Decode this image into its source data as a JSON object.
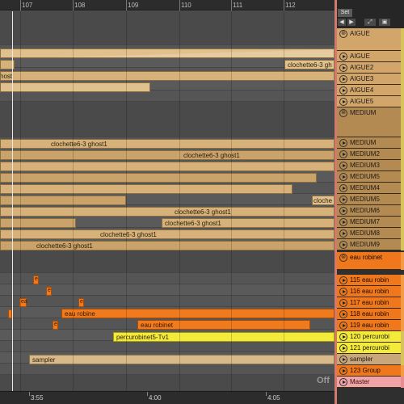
{
  "ruler": {
    "bars": [
      "107",
      "108",
      "109",
      "110",
      "111",
      "112"
    ]
  },
  "header": {
    "set_label": "Set",
    "back_icon": "arrow-left-icon",
    "forward_icon": "arrow-right-icon",
    "expand_icon": "expand-icon",
    "lock_icon": "lock-icon"
  },
  "tracks": [
    {
      "name": "AIGUE",
      "kind": "group"
    },
    {
      "name": "AIGUE",
      "kind": "aigue"
    },
    {
      "name": "AIGUE2",
      "kind": "aigue"
    },
    {
      "name": "AIGUE3",
      "kind": "aigue"
    },
    {
      "name": "AIGUE4",
      "kind": "aigue"
    },
    {
      "name": "AIGUE5",
      "kind": "aigue"
    },
    {
      "name": "MEDIUM",
      "kind": "group"
    },
    {
      "name": "MEDIUM",
      "kind": "medium"
    },
    {
      "name": "MEDIUM2",
      "kind": "medium"
    },
    {
      "name": "MEDIUM3",
      "kind": "medium"
    },
    {
      "name": "MEDIUM5",
      "kind": "medium"
    },
    {
      "name": "MEDIUM4",
      "kind": "medium"
    },
    {
      "name": "MEDIUM5",
      "kind": "medium"
    },
    {
      "name": "MEDIUM6",
      "kind": "medium"
    },
    {
      "name": "MEDIUM7",
      "kind": "medium"
    },
    {
      "name": "MEDIUM8",
      "kind": "medium"
    },
    {
      "name": "MEDIUM9",
      "kind": "medium"
    },
    {
      "name": "eau robinet",
      "kind": "orange-group"
    },
    {
      "name": "115 eau robin",
      "kind": "orange"
    },
    {
      "name": "116 eau robin",
      "kind": "orange"
    },
    {
      "name": "117 eau robin",
      "kind": "orange"
    },
    {
      "name": "118 eau robin",
      "kind": "orange"
    },
    {
      "name": "119 eau robin",
      "kind": "orange"
    },
    {
      "name": "120 percurobi",
      "kind": "yellow"
    },
    {
      "name": "121 percurobi",
      "kind": "yellow"
    },
    {
      "name": "sampler",
      "kind": "beige"
    },
    {
      "name": "123 Group",
      "kind": "group-orange"
    },
    {
      "name": "Master",
      "kind": "master"
    }
  ],
  "clips": {
    "clochette": "clochette6-3 gh",
    "ghost_short": "host",
    "ghost1": "clochette6-3 ghost1",
    "cloche_cut": "cloche",
    "eau_robinet": "eau robinet",
    "eau_robine": "eau robine",
    "percurobinet": "percurobinet5-Tv1",
    "sampler": "sampler",
    "mini_e": "e",
    "mini_ea": "ea",
    "mini_a": "a"
  },
  "time_ruler": {
    "labels": [
      "3:55",
      "4:00",
      "4:05"
    ],
    "off_label": "Off"
  },
  "colors": {
    "clip_tan": "#d6b27a",
    "clip_orange": "#f07a1e",
    "clip_yellow": "#f3ea3a",
    "master": "#f0a4a8",
    "separator": "#d5786e"
  }
}
